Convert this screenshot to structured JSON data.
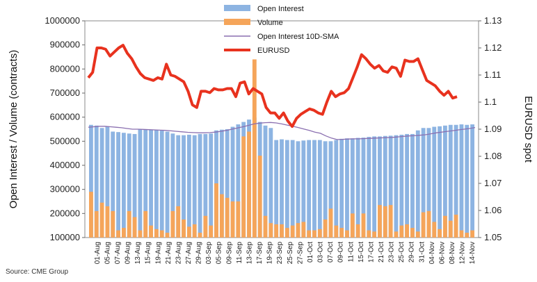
{
  "chart_data": {
    "type": "bar",
    "ylabel_left": "Open Interest / Volume (contracts)",
    "ylabel_right": "EURUSD spot",
    "source": "Source: CME Group",
    "ylim_left": [
      100000,
      1000000
    ],
    "ylim_right": [
      1.05,
      1.13
    ],
    "yticks_left": [
      "100000",
      "200000",
      "300000",
      "400000",
      "500000",
      "600000",
      "700000",
      "800000",
      "900000",
      "1000000"
    ],
    "yticks_right": [
      "1.05",
      "1.06",
      "1.07",
      "1.08",
      "1.09",
      "1.1",
      "1.11",
      "1.12",
      "1.13"
    ],
    "x_tick_labels": [
      "01-Aug",
      "05-Aug",
      "07-Aug",
      "09-Aug",
      "13-Aug",
      "15-Aug",
      "19-Aug",
      "21-Aug",
      "23-Aug",
      "27-Aug",
      "29-Aug",
      "03-Sep",
      "05-Sep",
      "09-Sep",
      "11-Sep",
      "13-Sep",
      "17-Sep",
      "19-Sep",
      "23-Sep",
      "25-Sep",
      "27-Sep",
      "01-Oct",
      "03-Oct",
      "07-Oct",
      "09-Oct",
      "11-Oct",
      "15-Oct",
      "17-Oct",
      "21-Oct",
      "23-Oct",
      "25-Oct",
      "29-Oct",
      "31-Oct",
      "04-Nov",
      "06-Nov",
      "08-Nov",
      "12-Nov",
      "14-Nov"
    ],
    "series": [
      {
        "name": "Open Interest",
        "kind": "bar",
        "color": "#8db4e2",
        "values": [
          568000,
          565000,
          555000,
          560000,
          540000,
          538000,
          535000,
          532000,
          530000,
          550000,
          548000,
          547000,
          546000,
          544000,
          540000,
          532000,
          525000,
          525000,
          527000,
          525000,
          530000,
          530000,
          532000,
          545000,
          548000,
          550000,
          560000,
          570000,
          580000,
          590000,
          598000,
          580000,
          565000,
          555000,
          505000,
          508000,
          505000,
          505000,
          500000,
          503000,
          505000,
          505000,
          505000,
          500000,
          500000,
          505000,
          510000,
          512000,
          512000,
          514000,
          515000,
          518000,
          520000,
          520000,
          522000,
          523000,
          525000,
          527000,
          530000,
          530000,
          545000,
          555000,
          555000,
          560000,
          562000,
          565000,
          568000,
          568000,
          570000,
          568000,
          570000
        ]
      },
      {
        "name": "Volume",
        "kind": "bar",
        "color": "#f5a55a",
        "values": [
          290000,
          210000,
          245000,
          230000,
          210000,
          130000,
          140000,
          210000,
          185000,
          130000,
          210000,
          150000,
          135000,
          130000,
          120000,
          210000,
          230000,
          175000,
          145000,
          155000,
          120000,
          190000,
          150000,
          325000,
          280000,
          265000,
          250000,
          250000,
          520000,
          540000,
          840000,
          440000,
          190000,
          160000,
          155000,
          155000,
          140000,
          150000,
          160000,
          165000,
          130000,
          130000,
          135000,
          175000,
          220000,
          150000,
          140000,
          130000,
          200000,
          155000,
          200000,
          130000,
          125000,
          235000,
          230000,
          235000,
          125000,
          150000,
          155000,
          140000,
          125000,
          205000,
          210000,
          165000,
          135000,
          190000,
          170000,
          195000,
          130000,
          120000,
          130000
        ]
      },
      {
        "name": "Open Interest 10D-SMA",
        "kind": "line",
        "color": "#8a6fb0",
        "values": [
          558000,
          560000,
          562000,
          562000,
          560000,
          558000,
          556000,
          553000,
          550000,
          550000,
          549000,
          548000,
          547000,
          546000,
          545000,
          543000,
          541000,
          539000,
          537000,
          536000,
          535000,
          535000,
          536000,
          538000,
          541000,
          545000,
          550000,
          555000,
          560000,
          566000,
          572000,
          575000,
          577000,
          578000,
          576000,
          572000,
          567000,
          562000,
          557000,
          551000,
          545000,
          538000,
          533000,
          522000,
          513000,
          507000,
          508000,
          509000,
          510000,
          510000,
          511000,
          512000,
          513000,
          514000,
          515000,
          516000,
          518000,
          520000,
          522000,
          523000,
          525000,
          527000,
          531000,
          535000,
          538000,
          541000,
          544000,
          547000,
          550000,
          553000,
          557000
        ]
      },
      {
        "name": "EURUSD",
        "kind": "line",
        "color": "#e8321e",
        "values": [
          1.109,
          1.111,
          1.12,
          1.12,
          1.1195,
          1.117,
          1.1185,
          1.12,
          1.121,
          1.118,
          1.116,
          1.113,
          1.1105,
          1.109,
          1.1085,
          1.108,
          1.109,
          1.1085,
          1.114,
          1.11,
          1.1095,
          1.1085,
          1.1075,
          1.104,
          1.099,
          1.098,
          1.104,
          1.104,
          1.1035,
          1.105,
          1.1045,
          1.1045,
          1.105,
          1.105,
          1.102,
          1.107,
          1.1075,
          1.103,
          1.105,
          1.104,
          1.103,
          1.098,
          1.096,
          1.096,
          1.094,
          1.096,
          1.093,
          1.091,
          1.094,
          1.0955,
          1.0965,
          1.0975,
          1.097,
          1.096,
          1.0955,
          1.1,
          1.104,
          1.102,
          1.103,
          1.1035,
          1.105,
          1.109,
          1.113,
          1.1175,
          1.116,
          1.114,
          1.1125,
          1.1135,
          1.1115,
          1.111,
          1.113,
          1.1125,
          1.1095,
          1.1155,
          1.115,
          1.115,
          1.116,
          1.112,
          1.108,
          1.107,
          1.106,
          1.104,
          1.1025,
          1.104,
          1.1015,
          1.102
        ]
      }
    ],
    "legend_position": "top-center",
    "grid": false
  }
}
